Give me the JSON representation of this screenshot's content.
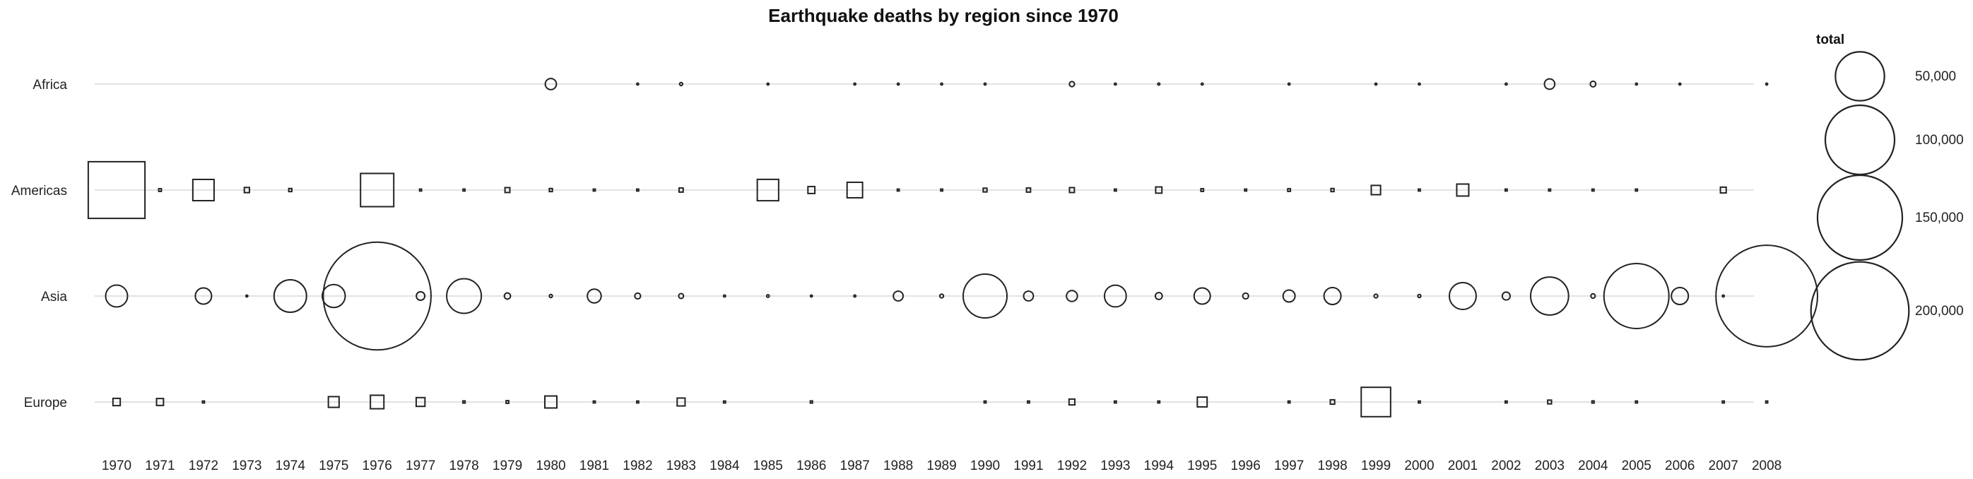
{
  "chart_data": {
    "type": "scatter",
    "title": "Earthquake deaths by region since 1970",
    "xlabel": "",
    "ylabel": "",
    "x": [
      "1970",
      "1971",
      "1972",
      "1973",
      "1974",
      "1975",
      "1976",
      "1977",
      "1978",
      "1979",
      "1980",
      "1981",
      "1982",
      "1983",
      "1984",
      "1985",
      "1986",
      "1987",
      "1988",
      "1989",
      "1990",
      "1991",
      "1992",
      "1993",
      "1994",
      "1995",
      "1996",
      "1997",
      "1998",
      "1999",
      "2000",
      "2001",
      "2002",
      "2003",
      "2004",
      "2005",
      "2006",
      "2007",
      "2008"
    ],
    "size_legend": {
      "title": "total",
      "values": [
        50000,
        100000,
        150000,
        200000
      ],
      "labels": [
        "50,000",
        "100,000",
        "150,000",
        "200,000"
      ]
    },
    "series": [
      {
        "name": "Africa",
        "shape": "circle",
        "values": [
          null,
          null,
          null,
          null,
          null,
          null,
          null,
          null,
          null,
          null,
          2600,
          null,
          20,
          200,
          null,
          10,
          null,
          5,
          5,
          30,
          5,
          null,
          550,
          5,
          100,
          5,
          null,
          10,
          null,
          30,
          2,
          null,
          30,
          2250,
          650,
          10,
          2,
          null,
          30
        ]
      },
      {
        "name": "Americas",
        "shape": "square",
        "values": [
          67000,
          150,
          9400,
          550,
          200,
          null,
          23000,
          50,
          10,
          500,
          200,
          20,
          60,
          350,
          null,
          9500,
          1000,
          5000,
          2,
          50,
          300,
          350,
          500,
          10,
          800,
          150,
          5,
          150,
          200,
          1800,
          5,
          3000,
          20,
          2,
          5,
          20,
          null,
          700,
          null
        ]
      },
      {
        "name": "Asia",
        "shape": "circle",
        "values": [
          10000,
          null,
          5500,
          10,
          22000,
          11000,
          242000,
          1500,
          25000,
          800,
          200,
          4000,
          700,
          500,
          100,
          150,
          5,
          100,
          2000,
          300,
          40000,
          2000,
          2500,
          9900,
          1000,
          5500,
          700,
          3000,
          6000,
          300,
          200,
          15000,
          1300,
          30000,
          400,
          88000,
          6000,
          10,
          215000
        ]
      },
      {
        "name": "Europe",
        "shape": "square",
        "values": [
          1100,
          1000,
          20,
          null,
          null,
          2400,
          3800,
          1600,
          100,
          150,
          3000,
          30,
          5,
          1300,
          10,
          null,
          100,
          null,
          null,
          null,
          50,
          10,
          700,
          10,
          10,
          2000,
          null,
          10,
          400,
          18000,
          50,
          null,
          80,
          300,
          100,
          5,
          null,
          10,
          50
        ]
      }
    ],
    "legend_position": "right",
    "grid": false
  }
}
